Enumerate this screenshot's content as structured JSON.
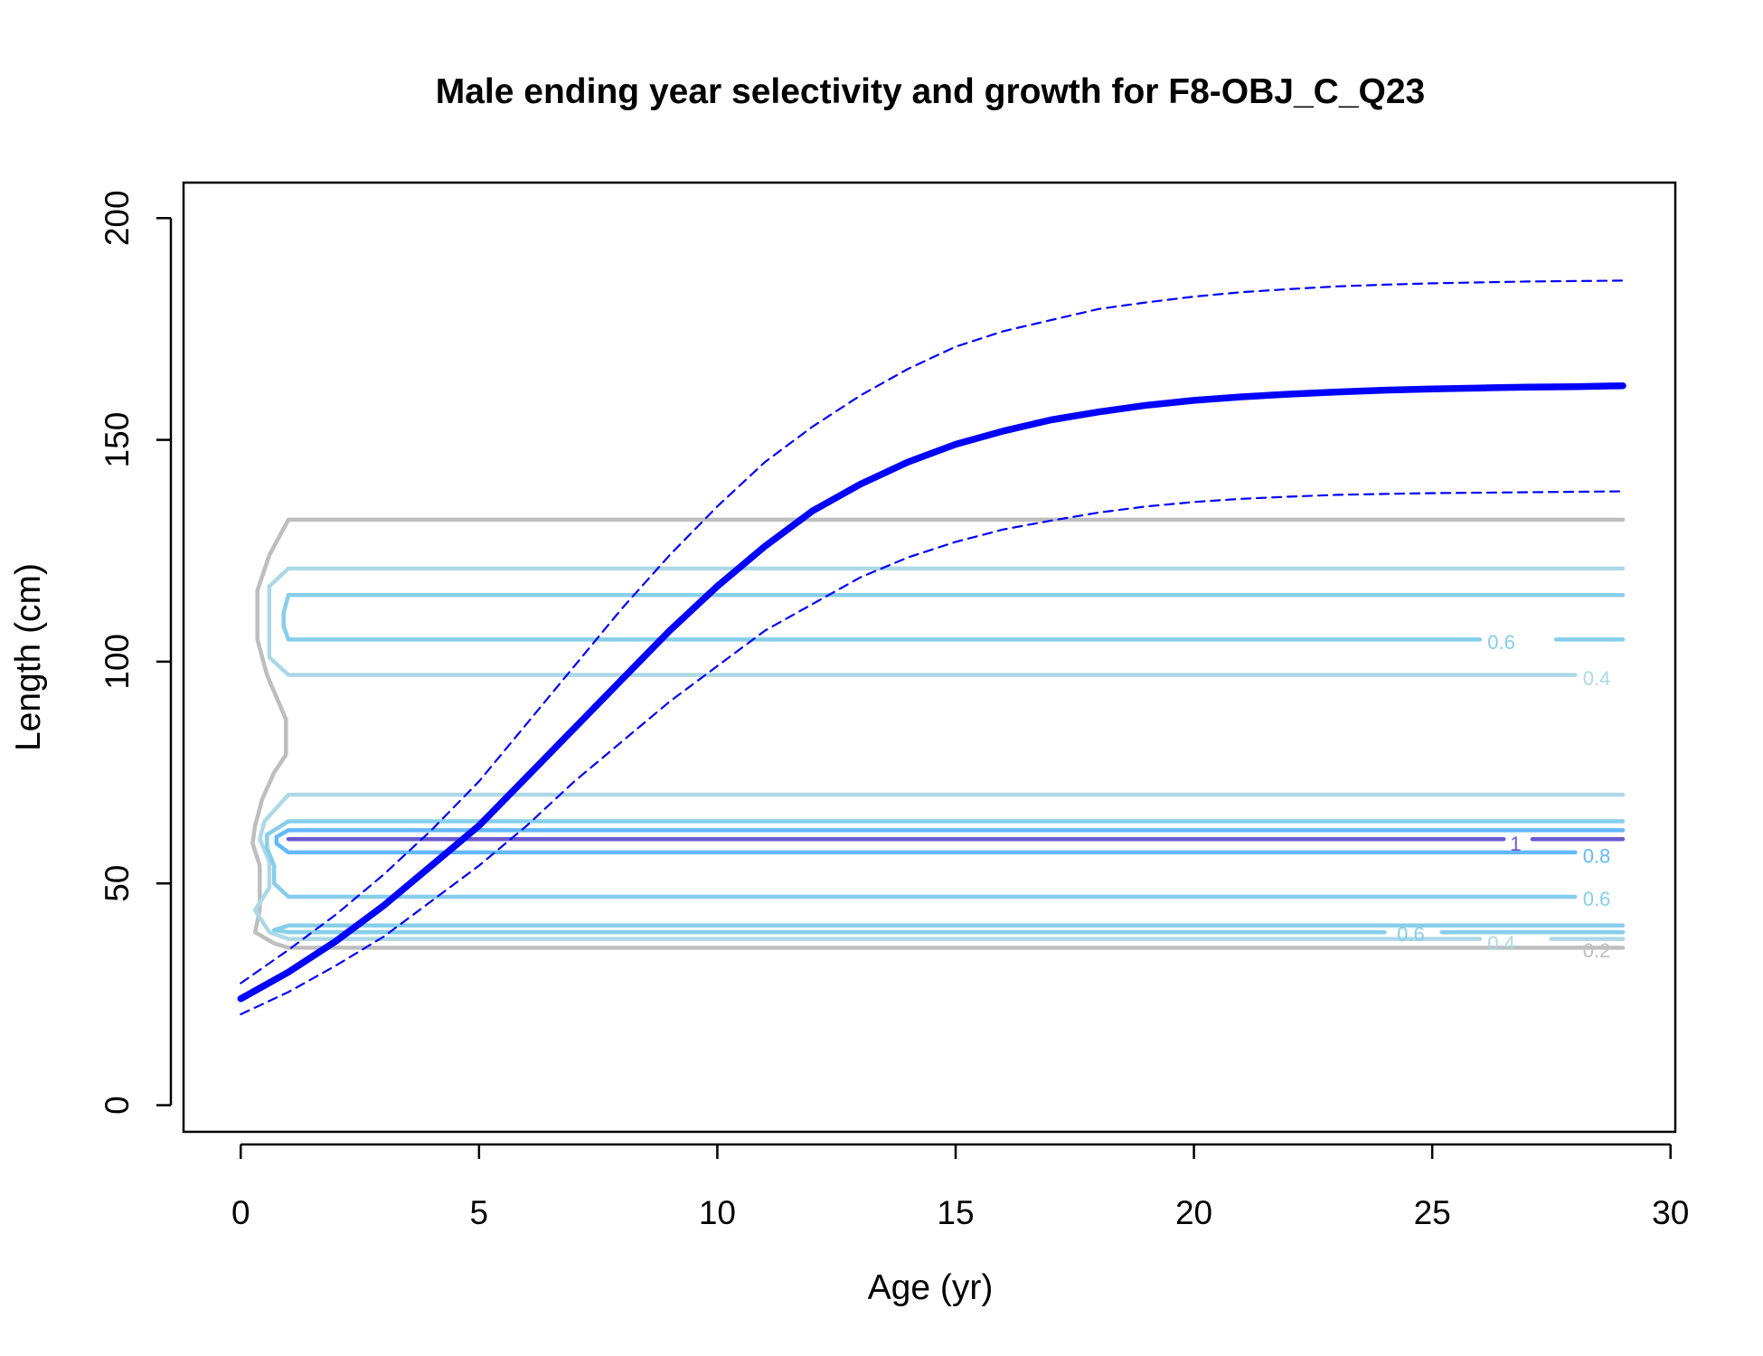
{
  "chart_data": {
    "type": "line",
    "title": "Male ending year selectivity and growth for F8-OBJ_C_Q23",
    "xlabel": "Age (yr)",
    "ylabel": "Length (cm)",
    "xlim": [
      -1.2,
      30.1
    ],
    "ylim": [
      -6,
      208
    ],
    "xticks": [
      "0",
      "5",
      "10",
      "15",
      "20",
      "25",
      "30"
    ],
    "yticks": [
      "0",
      "50",
      "100",
      "150",
      "200"
    ],
    "grid": false,
    "legend": "none",
    "colors": {
      "growth": "#0000ff",
      "level_0.2": "#bebebe",
      "level_0.4": "#add8e6",
      "level_0.6": "#87ceeb",
      "level_0.8": "#63b8ff",
      "level_1": "#6a5acd"
    },
    "series": [
      {
        "style": "solid-thick",
        "x": [
          0,
          1,
          2,
          3,
          4,
          5,
          6,
          7,
          8,
          9,
          10,
          11,
          12,
          13,
          14,
          15,
          16,
          17,
          18,
          19,
          20,
          21,
          22,
          23,
          24,
          25,
          26,
          27,
          28,
          29
        ],
        "y": [
          24,
          30,
          37,
          45,
          54,
          63,
          74,
          85,
          96,
          107,
          117,
          126,
          134,
          140,
          145,
          149,
          152,
          154.5,
          156.3,
          157.8,
          158.9,
          159.7,
          160.3,
          160.8,
          161.2,
          161.5,
          161.7,
          161.9,
          162,
          162.2
        ]
      },
      {
        "style": "dashed",
        "x": [
          0,
          1,
          2,
          3,
          4,
          5,
          6,
          7,
          8,
          9,
          10,
          11,
          12,
          13,
          14,
          15,
          16,
          17,
          18,
          19,
          20,
          21,
          22,
          23,
          24,
          25,
          26,
          27,
          28,
          29
        ],
        "y": [
          27.5,
          35,
          43,
          52,
          62,
          73,
          86,
          99,
          112,
          124,
          135,
          145,
          153,
          160,
          166,
          171,
          174.5,
          177,
          179.5,
          181,
          182.3,
          183.3,
          184,
          184.6,
          185,
          185.3,
          185.5,
          185.7,
          185.8,
          185.9
        ]
      },
      {
        "style": "dashed",
        "x": [
          0,
          1,
          2,
          3,
          4,
          5,
          6,
          7,
          8,
          9,
          10,
          11,
          12,
          13,
          14,
          15,
          16,
          17,
          18,
          19,
          20,
          21,
          22,
          23,
          24,
          25,
          26,
          27,
          28,
          29
        ],
        "y": [
          20.5,
          25.5,
          31.5,
          38,
          46,
          54,
          63,
          73,
          82,
          91,
          99,
          107,
          113,
          119,
          123.5,
          127,
          129.8,
          131.8,
          133.6,
          135,
          136,
          136.7,
          137.2,
          137.6,
          137.8,
          138,
          138.1,
          138.2,
          138.3,
          138.4
        ]
      }
    ],
    "contours": [
      {
        "level": 0.2,
        "label": "0.2",
        "points": [
          [
            29,
            132
          ],
          [
            1,
            132
          ],
          [
            0.6,
            124
          ],
          [
            0.35,
            116
          ],
          [
            0.35,
            105
          ],
          [
            0.55,
            97
          ],
          [
            0.95,
            87
          ],
          [
            0.95,
            79
          ],
          [
            0.7,
            75
          ],
          [
            0.45,
            69
          ],
          [
            0.3,
            63
          ],
          [
            0.25,
            59
          ],
          [
            0.4,
            54
          ],
          [
            0.4,
            49
          ],
          [
            0.4,
            44
          ],
          [
            0.3,
            39
          ],
          [
            0.7,
            36.5
          ],
          [
            1,
            35.5
          ],
          [
            29,
            35.5
          ]
        ]
      },
      {
        "level": 0.4,
        "label": "0.4",
        "points": [
          [
            29,
            121
          ],
          [
            1,
            121
          ],
          [
            0.6,
            117
          ],
          [
            0.6,
            101
          ],
          [
            1,
            97
          ],
          [
            28,
            97
          ]
        ]
      },
      {
        "level": 0.6,
        "label": "0.6",
        "points": [
          [
            29,
            115
          ],
          [
            1,
            115
          ],
          [
            0.9,
            111
          ],
          [
            0.9,
            108
          ],
          [
            1,
            105
          ],
          [
            26,
            105
          ]
        ]
      },
      {
        "level": 0.6,
        "label": "",
        "points": [
          [
            27.6,
            105
          ],
          [
            29,
            105
          ]
        ]
      },
      {
        "level": 0.4,
        "label": "",
        "points": [
          [
            29,
            70
          ],
          [
            1,
            70
          ],
          [
            0.5,
            64
          ],
          [
            0.4,
            60
          ],
          [
            0.6,
            55
          ],
          [
            0.6,
            49
          ],
          [
            0.3,
            44
          ],
          [
            0.6,
            39
          ],
          [
            1,
            37.5
          ],
          [
            26,
            37.5
          ]
        ]
      },
      {
        "level": 0.4,
        "label": "0.4",
        "points": [
          [
            27.5,
            37.5
          ],
          [
            29,
            37.5
          ]
        ]
      },
      {
        "level": 0.6,
        "label": "",
        "points": [
          [
            29,
            64
          ],
          [
            1,
            64
          ],
          [
            0.55,
            61
          ],
          [
            0.55,
            58
          ],
          [
            0.7,
            54
          ],
          [
            0.7,
            50
          ],
          [
            1,
            47
          ],
          [
            28,
            47
          ]
        ]
      },
      {
        "level": 0.6,
        "label": "0.6",
        "points": [
          [
            29,
            40.5
          ],
          [
            1,
            40.5
          ],
          [
            0.7,
            39.5
          ],
          [
            1,
            39
          ],
          [
            24,
            39
          ]
        ]
      },
      {
        "level": 0.6,
        "label": "",
        "points": [
          [
            25.2,
            39
          ],
          [
            29,
            39
          ]
        ]
      },
      {
        "level": 0.8,
        "label": "0.8",
        "points": [
          [
            29,
            62
          ],
          [
            1,
            62
          ],
          [
            0.75,
            60.5
          ],
          [
            0.75,
            59
          ],
          [
            1,
            57
          ],
          [
            28,
            57
          ]
        ]
      },
      {
        "level": 1,
        "label": "1",
        "points": [
          [
            1,
            60
          ],
          [
            26.5,
            60
          ]
        ]
      },
      {
        "level": 1,
        "label": "",
        "points": [
          [
            27.1,
            60
          ],
          [
            29,
            60
          ]
        ]
      }
    ],
    "contour_labels": [
      {
        "text": "0.6",
        "x": 26.45,
        "y": 104.5,
        "color": "#87ceeb"
      },
      {
        "text": "0.4",
        "x": 28.45,
        "y": 96.3,
        "color": "#add8e6"
      },
      {
        "text": "1",
        "x": 26.75,
        "y": 59,
        "color": "#6a5acd"
      },
      {
        "text": "0.8",
        "x": 28.45,
        "y": 56.3,
        "color": "#63b8ff"
      },
      {
        "text": "0.6",
        "x": 28.45,
        "y": 46.6,
        "color": "#87ceeb"
      },
      {
        "text": "0.6",
        "x": 24.55,
        "y": 38.6,
        "color": "#87ceeb"
      },
      {
        "text": "0.4",
        "x": 26.45,
        "y": 36.6,
        "color": "#add8e6"
      },
      {
        "text": "0.2",
        "x": 28.45,
        "y": 35.0,
        "color": "#bebebe"
      }
    ]
  }
}
